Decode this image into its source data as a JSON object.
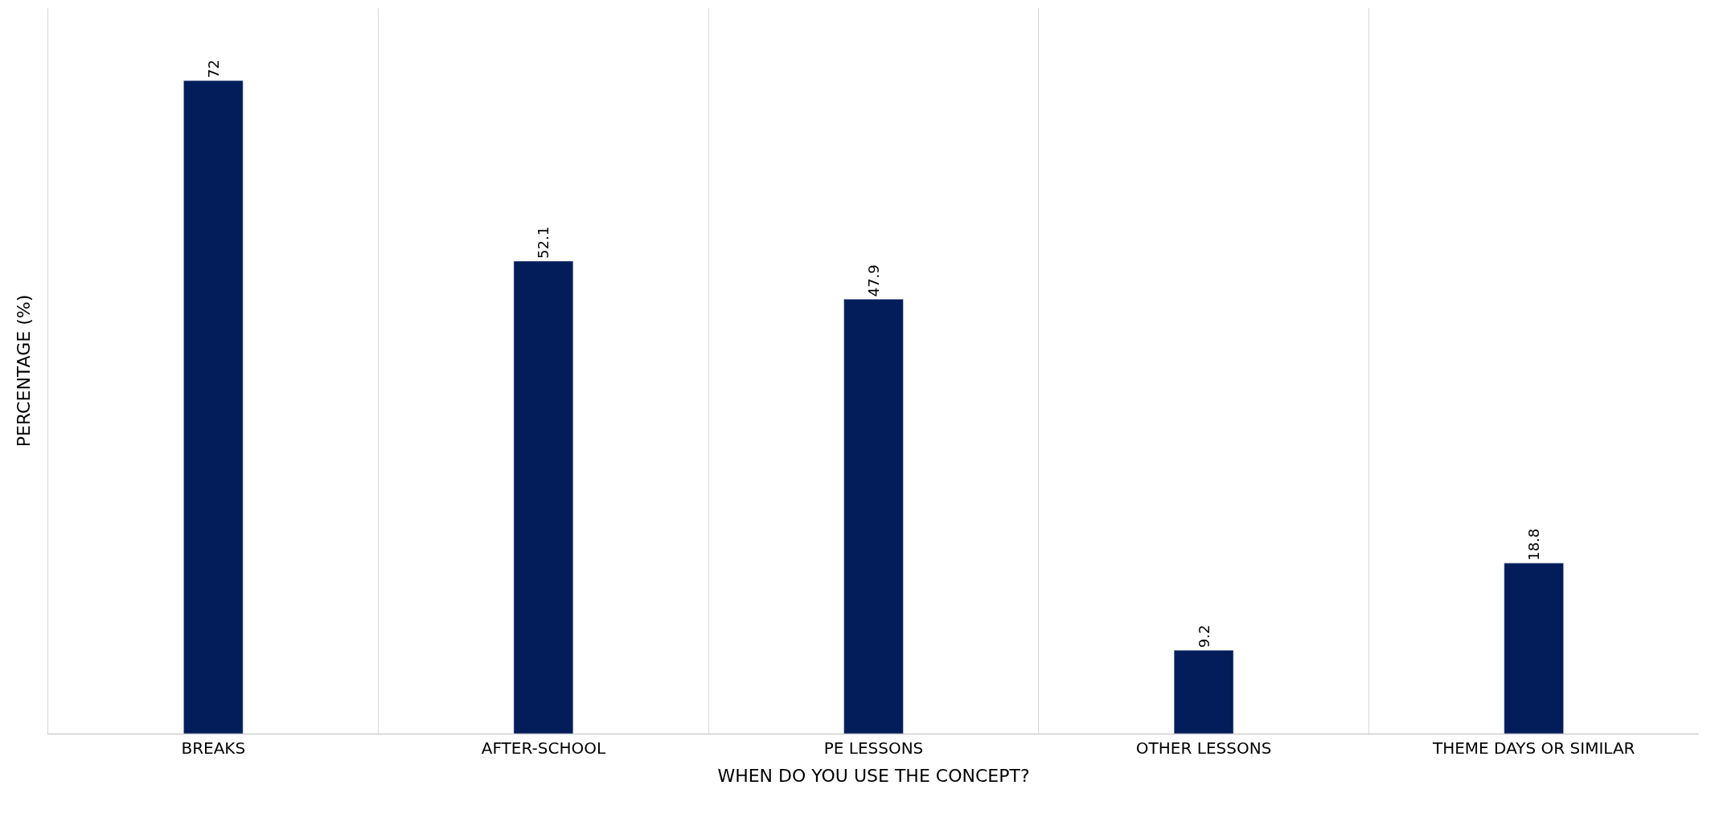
{
  "chart_data": {
    "type": "bar",
    "xlabel": "WHEN DO YOU USE THE CONCEPT?",
    "ylabel": "PERCENTAGE (%)",
    "categories": [
      "BREAKS",
      "AFTER-SCHOOL",
      "PE LESSONS",
      "OTHER LESSONS",
      "THEME DAYS OR SIMILAR"
    ],
    "values": [
      72,
      52.1,
      47.9,
      9.2,
      18.8
    ],
    "color": "#021d59",
    "ylim": [
      0,
      80
    ],
    "tick_labels": "x",
    "data_labels": true,
    "grid": "x"
  }
}
